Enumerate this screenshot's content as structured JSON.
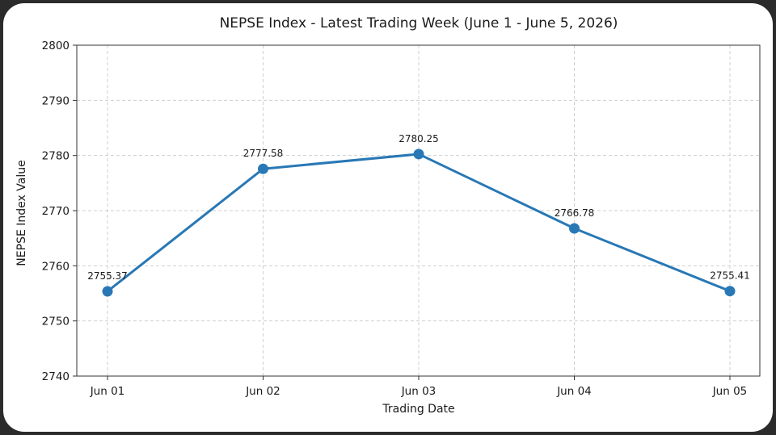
{
  "chart_data": {
    "type": "line",
    "title": "NEPSE Index - Latest Trading Week (June 1 - June 5, 2026)",
    "xlabel": "Trading Date",
    "ylabel": "NEPSE Index Value",
    "categories": [
      "Jun 01",
      "Jun 02",
      "Jun 03",
      "Jun 04",
      "Jun 05"
    ],
    "series": [
      {
        "values": [
          2755.37,
          2777.58,
          2780.25,
          2766.78,
          2755.41
        ],
        "labels": [
          "2755.37",
          "2777.58",
          "2780.25",
          "2766.78",
          "2755.41"
        ],
        "color": "#2878b5"
      }
    ],
    "ylim": [
      2740,
      2800
    ],
    "yticks": [
      2740,
      2750,
      2760,
      2770,
      2780,
      2790,
      2800
    ],
    "ytick_labels": [
      "2740",
      "2750",
      "2760",
      "2770",
      "2780",
      "2790",
      "2800"
    ],
    "grid": true,
    "markers": true
  }
}
